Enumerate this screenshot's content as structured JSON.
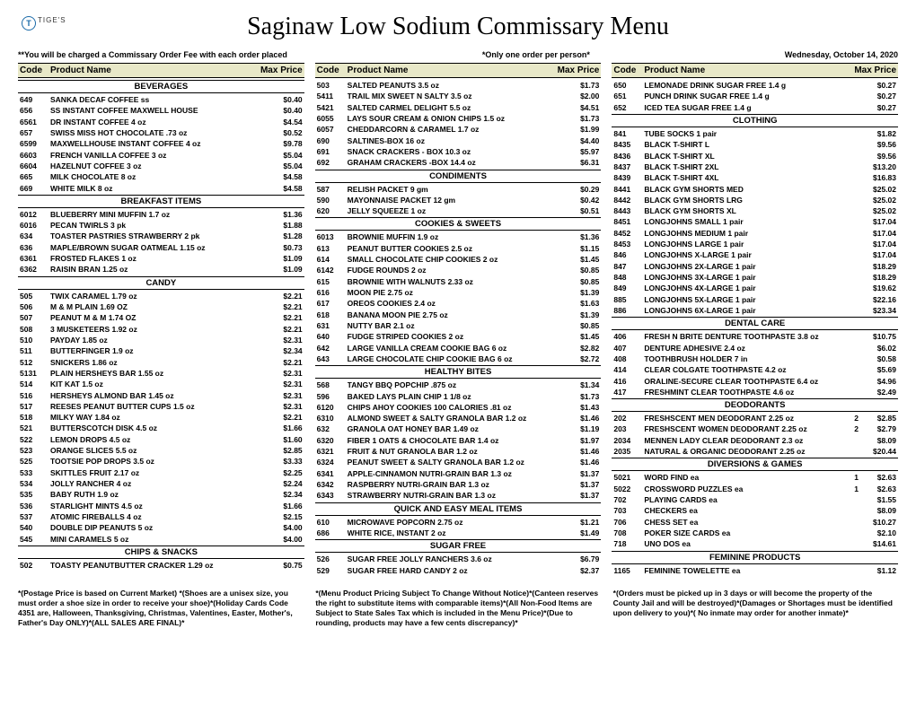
{
  "title": "Saginaw Low Sodium Commissary Menu",
  "logo_letter": "T",
  "logo_brand": "TIGE'S",
  "order_fee_note": "**You will be charged a Commissary Order Fee with each order placed",
  "one_order_note": "*Only one order per person*",
  "date": "Wednesday, October 14, 2020",
  "header_labels": {
    "code": "Code",
    "name": "Product Name",
    "price": "Max Price"
  },
  "footnotes": [
    "*(Postage Price is based on Current Market) *(Shoes are a unisex size, you must order a shoe size in order to receive your shoe)*(Holiday Cards Code 4351 are, Halloween, Thanksgiving, Christmas, Valentines, Easter, Mother's, Father's Day ONLY)*(ALL SALES ARE FINAL)*",
    "*(Menu Product  Pricing Subject To Change Without Notice)*(Canteen reserves the right to substitute items with comparable items)*(All Non-Food Items are Subject to State Sales Tax which is included in the Menu Price)*(Due to rounding, products may have a few cents discrepancy)*",
    "*(Orders must be picked up in 3 days or will become the property of the County Jail and will be destroyed)*(Damages or Shortages must be identified upon delivery to you)*( No inmate may order for another inmate)*"
  ],
  "columns": [
    [
      {
        "type": "section",
        "label": "BEVERAGES"
      },
      {
        "type": "item",
        "code": "649",
        "name": "SANKA DECAF COFFEE ss",
        "price": "$0.40"
      },
      {
        "type": "item",
        "code": "656",
        "name": "SS INSTANT COFFEE MAXWELL HOUSE",
        "price": "$0.40"
      },
      {
        "type": "item",
        "code": "6561",
        "name": "DR INSTANT COFFEE 4 oz",
        "price": "$4.54"
      },
      {
        "type": "item",
        "code": "657",
        "name": "SWISS MISS HOT CHOCOLATE .73 oz",
        "price": "$0.52"
      },
      {
        "type": "item",
        "code": "6599",
        "name": "MAXWELLHOUSE INSTANT COFFEE 4 oz",
        "price": "$9.78"
      },
      {
        "type": "item",
        "code": "6603",
        "name": "FRENCH VANILLA COFFEE 3 oz",
        "price": "$5.04"
      },
      {
        "type": "item",
        "code": "6604",
        "name": "HAZELNUT COFFEE 3 oz",
        "price": "$5.04"
      },
      {
        "type": "item",
        "code": "665",
        "name": "MILK CHOCOLATE 8 oz",
        "price": "$4.58"
      },
      {
        "type": "item",
        "code": "669",
        "name": "WHITE MILK 8 oz",
        "price": "$4.58"
      },
      {
        "type": "section",
        "label": "BREAKFAST ITEMS"
      },
      {
        "type": "item",
        "code": "6012",
        "name": "BLUEBERRY MINI MUFFIN 1.7 oz",
        "price": "$1.36"
      },
      {
        "type": "item",
        "code": "6016",
        "name": "PECAN TWIRLS 3 pk",
        "price": "$1.88"
      },
      {
        "type": "item",
        "code": "634",
        "name": "TOASTER PASTRIES STRAWBERRY 2 pk",
        "price": "$1.28"
      },
      {
        "type": "item",
        "code": "636",
        "name": "MAPLE/BROWN SUGAR OATMEAL 1.15 oz",
        "price": "$0.73"
      },
      {
        "type": "item",
        "code": "6361",
        "name": "FROSTED FLAKES 1 oz",
        "price": "$1.09"
      },
      {
        "type": "item",
        "code": "6362",
        "name": "RAISIN BRAN 1.25 oz",
        "price": "$1.09"
      },
      {
        "type": "section",
        "label": "CANDY"
      },
      {
        "type": "item",
        "code": "505",
        "name": "TWIX CARAMEL 1.79 oz",
        "price": "$2.21"
      },
      {
        "type": "item",
        "code": "506",
        "name": "M & M PLAIN 1.69 OZ",
        "price": "$2.21"
      },
      {
        "type": "item",
        "code": "507",
        "name": "PEANUT M & M 1.74 OZ",
        "price": "$2.21"
      },
      {
        "type": "item",
        "code": "508",
        "name": "3 MUSKETEERS 1.92 oz",
        "price": "$2.21"
      },
      {
        "type": "item",
        "code": "510",
        "name": "PAYDAY 1.85 oz",
        "price": "$2.31"
      },
      {
        "type": "item",
        "code": "511",
        "name": "BUTTERFINGER 1.9 oz",
        "price": "$2.34"
      },
      {
        "type": "item",
        "code": "512",
        "name": "SNICKERS 1.86 oz",
        "price": "$2.21"
      },
      {
        "type": "item",
        "code": "5131",
        "name": "PLAIN HERSHEYS BAR 1.55 oz",
        "price": "$2.31"
      },
      {
        "type": "item",
        "code": "514",
        "name": "KIT KAT 1.5 oz",
        "price": "$2.31"
      },
      {
        "type": "item",
        "code": "516",
        "name": "HERSHEYS ALMOND BAR 1.45 oz",
        "price": "$2.31"
      },
      {
        "type": "item",
        "code": "517",
        "name": "REESES PEANUT BUTTER CUPS 1.5 oz",
        "price": "$2.31"
      },
      {
        "type": "item",
        "code": "518",
        "name": "MILKY WAY 1.84 oz",
        "price": "$2.21"
      },
      {
        "type": "item",
        "code": "521",
        "name": "BUTTERSCOTCH DISK 4.5 oz",
        "price": "$1.66"
      },
      {
        "type": "item",
        "code": "522",
        "name": "LEMON DROPS 4.5 oz",
        "price": "$1.60"
      },
      {
        "type": "item",
        "code": "523",
        "name": "ORANGE SLICES 5.5 oz",
        "price": "$2.85"
      },
      {
        "type": "item",
        "code": "525",
        "name": "TOOTSIE POP DROPS 3.5 oz",
        "price": "$3.33"
      },
      {
        "type": "item",
        "code": "533",
        "name": "SKITTLES FRUIT 2.17 oz",
        "price": "$2.25"
      },
      {
        "type": "item",
        "code": "534",
        "name": "JOLLY RANCHER 4 oz",
        "price": "$2.24"
      },
      {
        "type": "item",
        "code": "535",
        "name": "BABY RUTH 1.9 oz",
        "price": "$2.34"
      },
      {
        "type": "item",
        "code": "536",
        "name": "STARLIGHT MINTS 4.5 oz",
        "price": "$1.66"
      },
      {
        "type": "item",
        "code": "537",
        "name": "ATOMIC FIREBALLS 4 oz",
        "price": "$2.15"
      },
      {
        "type": "item",
        "code": "540",
        "name": "DOUBLE DIP PEANUTS 5 oz",
        "price": "$4.00"
      },
      {
        "type": "item",
        "code": "545",
        "name": "MINI CARAMELS 5 oz",
        "price": "$4.00"
      },
      {
        "type": "section",
        "label": "CHIPS & SNACKS"
      },
      {
        "type": "item",
        "code": "502",
        "name": "TOASTY PEANUTBUTTER CRACKER 1.29 oz",
        "price": "$0.75"
      }
    ],
    [
      {
        "type": "item",
        "code": "503",
        "name": "SALTED PEANUTS 3.5 oz",
        "price": "$1.73"
      },
      {
        "type": "item",
        "code": "5411",
        "name": "TRAIL MIX SWEET N SALTY 3.5 oz",
        "price": "$2.00"
      },
      {
        "type": "item",
        "code": "5421",
        "name": "SALTED CARMEL DELIGHT 5.5 oz",
        "price": "$4.51"
      },
      {
        "type": "item",
        "code": "6055",
        "name": "LAYS SOUR CREAM & ONION CHIPS 1.5 oz",
        "price": "$1.73"
      },
      {
        "type": "item",
        "code": "6057",
        "name": "CHEDDARCORN & CARAMEL 1.7 oz",
        "price": "$1.99"
      },
      {
        "type": "item",
        "code": "690",
        "name": "SALTINES-BOX 16 oz",
        "price": "$4.40"
      },
      {
        "type": "item",
        "code": "691",
        "name": "SNACK CRACKERS - BOX 10.3 oz",
        "price": "$5.97"
      },
      {
        "type": "item",
        "code": "692",
        "name": "GRAHAM CRACKERS -BOX 14.4 oz",
        "price": "$6.31"
      },
      {
        "type": "section",
        "label": "CONDIMENTS"
      },
      {
        "type": "item",
        "code": "587",
        "name": "RELISH PACKET 9 gm",
        "price": "$0.29"
      },
      {
        "type": "item",
        "code": "590",
        "name": "MAYONNAISE PACKET 12 gm",
        "price": "$0.42"
      },
      {
        "type": "item",
        "code": "620",
        "name": "JELLY SQUEEZE 1 oz",
        "price": "$0.51"
      },
      {
        "type": "section",
        "label": "COOKIES & SWEETS"
      },
      {
        "type": "item",
        "code": "6013",
        "name": "BROWNIE MUFFIN 1.9 oz",
        "price": "$1.36"
      },
      {
        "type": "item",
        "code": "613",
        "name": "PEANUT BUTTER COOKIES 2.5 oz",
        "price": "$1.15"
      },
      {
        "type": "item",
        "code": "614",
        "name": "SMALL CHOCOLATE CHIP COOKIES 2 oz",
        "price": "$1.45"
      },
      {
        "type": "item",
        "code": "6142",
        "name": "FUDGE ROUNDS 2 oz",
        "price": "$0.85"
      },
      {
        "type": "item",
        "code": "615",
        "name": "BROWNIE WITH WALNUTS 2.33 oz",
        "price": "$0.85"
      },
      {
        "type": "item",
        "code": "616",
        "name": "MOON PIE 2.75 oz",
        "price": "$1.39"
      },
      {
        "type": "item",
        "code": "617",
        "name": "OREOS COOKIES 2.4 oz",
        "price": "$1.63"
      },
      {
        "type": "item",
        "code": "618",
        "name": "BANANA MOON PIE 2.75 oz",
        "price": "$1.39"
      },
      {
        "type": "item",
        "code": "631",
        "name": "NUTTY BAR 2.1 oz",
        "price": "$0.85"
      },
      {
        "type": "item",
        "code": "640",
        "name": "FUDGE STRIPED COOKIES 2 oz",
        "price": "$1.45"
      },
      {
        "type": "item",
        "code": "642",
        "name": "LARGE VANILLA CREAM COOKIE BAG 6 oz",
        "price": "$2.82"
      },
      {
        "type": "item",
        "code": "643",
        "name": "LARGE CHOCOLATE CHIP COOKIE BAG 6 oz",
        "price": "$2.72"
      },
      {
        "type": "section",
        "label": "HEALTHY BITES"
      },
      {
        "type": "item",
        "code": "568",
        "name": "TANGY BBQ POPCHIP .875 oz",
        "price": "$1.34"
      },
      {
        "type": "item",
        "code": "596",
        "name": "BAKED LAYS PLAIN CHIP 1 1/8 oz",
        "price": "$1.73"
      },
      {
        "type": "item",
        "code": "6120",
        "name": "CHIPS AHOY COOKIES 100 CALORIES .81 oz",
        "price": "$1.43"
      },
      {
        "type": "item",
        "code": "6310",
        "name": "ALMOND SWEET & SALTY GRANOLA BAR 1.2 oz",
        "price": "$1.46"
      },
      {
        "type": "item",
        "code": "632",
        "name": "GRANOLA OAT HONEY BAR 1.49 oz",
        "price": "$1.19"
      },
      {
        "type": "item",
        "code": "6320",
        "name": "FIBER 1 OATS & CHOCOLATE BAR 1.4 oz",
        "price": "$1.97"
      },
      {
        "type": "item",
        "code": "6321",
        "name": "FRUIT & NUT GRANOLA BAR 1.2 oz",
        "price": "$1.46"
      },
      {
        "type": "item",
        "code": "6324",
        "name": "PEANUT SWEET & SALTY GRANOLA BAR 1.2 oz",
        "price": "$1.46"
      },
      {
        "type": "item",
        "code": "6341",
        "name": "APPLE-CINNAMON NUTRI-GRAIN BAR 1.3 oz",
        "price": "$1.37"
      },
      {
        "type": "item",
        "code": "6342",
        "name": "RASPBERRY NUTRI-GRAIN BAR 1.3 oz",
        "price": "$1.37"
      },
      {
        "type": "item",
        "code": "6343",
        "name": "STRAWBERRY NUTRI-GRAIN BAR 1.3 oz",
        "price": "$1.37"
      },
      {
        "type": "section",
        "label": "QUICK AND EASY MEAL ITEMS"
      },
      {
        "type": "item",
        "code": "610",
        "name": "MICROWAVE POPCORN 2.75 oz",
        "price": "$1.21"
      },
      {
        "type": "item",
        "code": "686",
        "name": "WHITE RICE, INSTANT 2 oz",
        "price": "$1.49"
      },
      {
        "type": "section",
        "label": "SUGAR FREE"
      },
      {
        "type": "item",
        "code": "526",
        "name": "SUGAR FREE JOLLY RANCHERS 3.6 oz",
        "price": "$6.79"
      },
      {
        "type": "item",
        "code": "529",
        "name": "SUGAR FREE HARD CANDY 2 oz",
        "price": "$2.37"
      }
    ],
    [
      {
        "type": "item",
        "code": "650",
        "name": "LEMONADE DRINK SUGAR FREE 1.4 g",
        "price": "$0.27"
      },
      {
        "type": "item",
        "code": "651",
        "name": "PUNCH DRINK SUGAR FREE 1.4 g",
        "price": "$0.27"
      },
      {
        "type": "item",
        "code": "652",
        "name": "ICED TEA SUGAR FREE 1.4 g",
        "price": "$0.27"
      },
      {
        "type": "section",
        "label": "CLOTHING"
      },
      {
        "type": "item",
        "code": "841",
        "name": "TUBE SOCKS 1 pair",
        "price": "$1.82"
      },
      {
        "type": "item",
        "code": "8435",
        "name": "BLACK T-SHIRT L",
        "price": "$9.56"
      },
      {
        "type": "item",
        "code": "8436",
        "name": "BLACK T-SHIRT XL",
        "price": "$9.56"
      },
      {
        "type": "item",
        "code": "8437",
        "name": "BLACK T-SHIRT 2XL",
        "price": "$13.20"
      },
      {
        "type": "item",
        "code": "8439",
        "name": "BLACK T-SHIRT 4XL",
        "price": "$16.83"
      },
      {
        "type": "item",
        "code": "8441",
        "name": "BLACK GYM SHORTS MED",
        "price": "$25.02"
      },
      {
        "type": "item",
        "code": "8442",
        "name": "BLACK GYM SHORTS LRG",
        "price": "$25.02"
      },
      {
        "type": "item",
        "code": "8443",
        "name": "BLACK GYM SHORTS XL",
        "price": "$25.02"
      },
      {
        "type": "item",
        "code": "8451",
        "name": "LONGJOHNS SMALL 1 pair",
        "price": "$17.04"
      },
      {
        "type": "item",
        "code": "8452",
        "name": "LONGJOHNS MEDIUM 1 pair",
        "price": "$17.04"
      },
      {
        "type": "item",
        "code": "8453",
        "name": "LONGJOHNS LARGE 1 pair",
        "price": "$17.04"
      },
      {
        "type": "item",
        "code": "846",
        "name": "LONGJOHNS X-LARGE 1 pair",
        "price": "$17.04"
      },
      {
        "type": "item",
        "code": "847",
        "name": "LONGJOHNS 2X-LARGE 1 pair",
        "price": "$18.29"
      },
      {
        "type": "item",
        "code": "848",
        "name": "LONGJOHNS 3X-LARGE 1 pair",
        "price": "$18.29"
      },
      {
        "type": "item",
        "code": "849",
        "name": "LONGJOHNS 4X-LARGE 1 pair",
        "price": "$19.62"
      },
      {
        "type": "item",
        "code": "885",
        "name": "LONGJOHNS 5X-LARGE 1 pair",
        "price": "$22.16"
      },
      {
        "type": "item",
        "code": "886",
        "name": "LONGJOHNS 6X-LARGE 1 pair",
        "price": "$23.34"
      },
      {
        "type": "section",
        "label": "DENTAL CARE"
      },
      {
        "type": "item",
        "code": "406",
        "name": "FRESH N BRITE DENTURE TOOTHPASTE 3.8 oz",
        "price": "$10.75"
      },
      {
        "type": "item",
        "code": "407",
        "name": "DENTURE ADHESIVE 2.4 oz",
        "price": "$6.02"
      },
      {
        "type": "item",
        "code": "408",
        "name": "TOOTHBRUSH HOLDER 7 in",
        "price": "$0.58"
      },
      {
        "type": "item",
        "code": "414",
        "name": "CLEAR COLGATE TOOTHPASTE 4.2 oz",
        "price": "$5.69"
      },
      {
        "type": "item",
        "code": "416",
        "name": "ORALINE-SECURE CLEAR TOOTHPASTE 6.4 oz",
        "price": "$4.96"
      },
      {
        "type": "item",
        "code": "417",
        "name": "FRESHMINT CLEAR TOOTHPASTE 4.6 oz",
        "price": "$2.49"
      },
      {
        "type": "section",
        "label": "DEODORANTS"
      },
      {
        "type": "item",
        "code": "202",
        "name": "FRESHSCENT MEN DEODORANT 2.25 oz",
        "qty": "2",
        "price": "$2.85"
      },
      {
        "type": "item",
        "code": "203",
        "name": "FRESHSCENT WOMEN DEODORANT 2.25 oz",
        "qty": "2",
        "price": "$2.79"
      },
      {
        "type": "item",
        "code": "2034",
        "name": "MENNEN LADY CLEAR DEODORANT 2.3 oz",
        "price": "$8.09"
      },
      {
        "type": "item",
        "code": "2035",
        "name": "NATURAL & ORGANIC DEODORANT 2.25 oz",
        "price": "$20.44"
      },
      {
        "type": "section",
        "label": "DIVERSIONS & GAMES"
      },
      {
        "type": "item",
        "code": "5021",
        "name": "WORD FIND ea",
        "qty": "1",
        "price": "$2.63"
      },
      {
        "type": "item",
        "code": "5022",
        "name": "CROSSWORD PUZZLES ea",
        "qty": "1",
        "price": "$2.63"
      },
      {
        "type": "item",
        "code": "702",
        "name": "PLAYING CARDS ea",
        "price": "$1.55"
      },
      {
        "type": "item",
        "code": "703",
        "name": "CHECKERS ea",
        "price": "$8.09"
      },
      {
        "type": "item",
        "code": "706",
        "name": "CHESS SET ea",
        "price": "$10.27"
      },
      {
        "type": "item",
        "code": "708",
        "name": "POKER SIZE CARDS ea",
        "price": "$2.10"
      },
      {
        "type": "item",
        "code": "718",
        "name": "UNO DOS ea",
        "price": "$14.61"
      },
      {
        "type": "section",
        "label": "FEMININE PRODUCTS"
      },
      {
        "type": "item",
        "code": "1165",
        "name": "FEMININE TOWELETTE ea",
        "price": "$1.12"
      }
    ]
  ]
}
